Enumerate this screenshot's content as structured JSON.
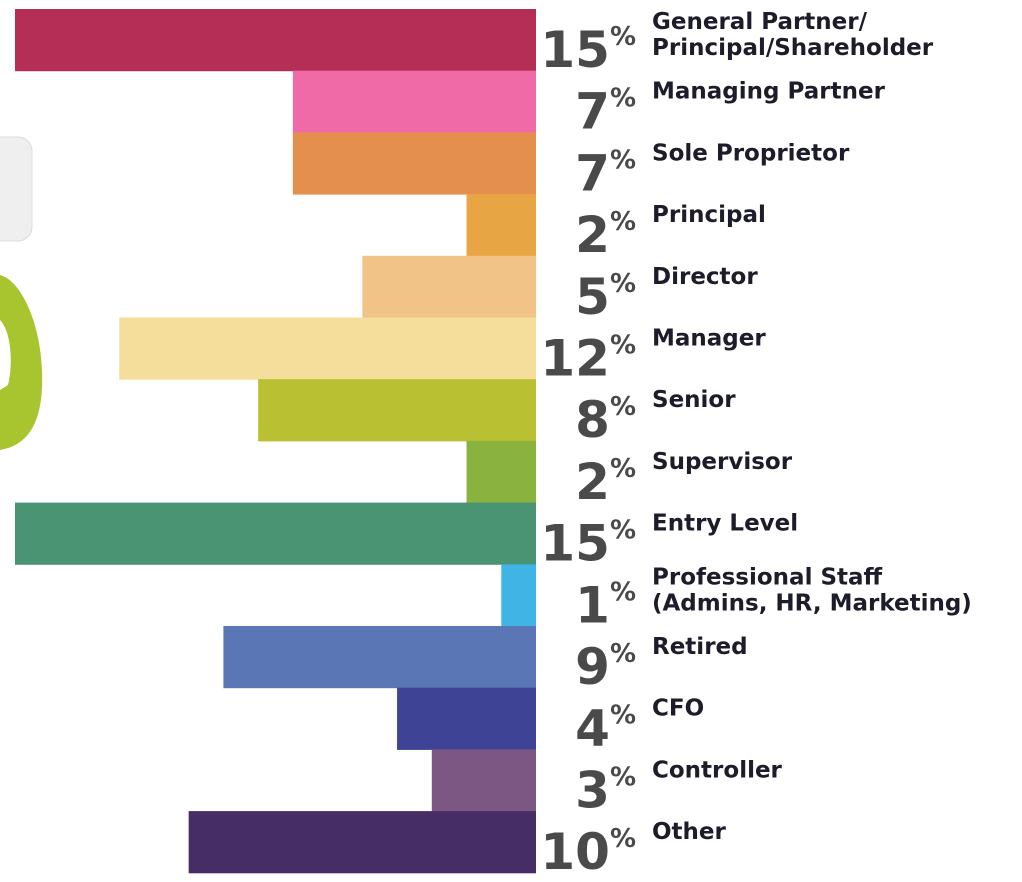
{
  "chart_data": {
    "type": "bar",
    "orientation": "horizontal",
    "categories": [
      "General Partner/\nPrincipal/Shareholder",
      "Managing Partner",
      "Sole Proprietor",
      "Principal",
      "Director",
      "Manager",
      "Senior",
      "Supervisor",
      "Entry Level",
      "Professional Staff\n(Admins, HR, Marketing)",
      "Retired",
      "CFO",
      "Controller",
      "Other"
    ],
    "values": [
      15,
      7,
      7,
      2,
      5,
      12,
      8,
      2,
      15,
      1,
      9,
      4,
      3,
      10
    ],
    "value_labels": [
      "15%",
      "7%",
      "7%",
      "2%",
      "5%",
      "12%",
      "8%",
      "2%",
      "15%",
      "1%",
      "9%",
      "4%",
      "3%",
      "10%"
    ],
    "colors": [
      "#b52e55",
      "#ef6aa6",
      "#e58f4f",
      "#e8a543",
      "#f1c387",
      "#f5dd9b",
      "#b9c031",
      "#8ab23f",
      "#4a9474",
      "#40b4e5",
      "#5a76b5",
      "#3f4396",
      "#7d5783",
      "#462d65"
    ]
  }
}
